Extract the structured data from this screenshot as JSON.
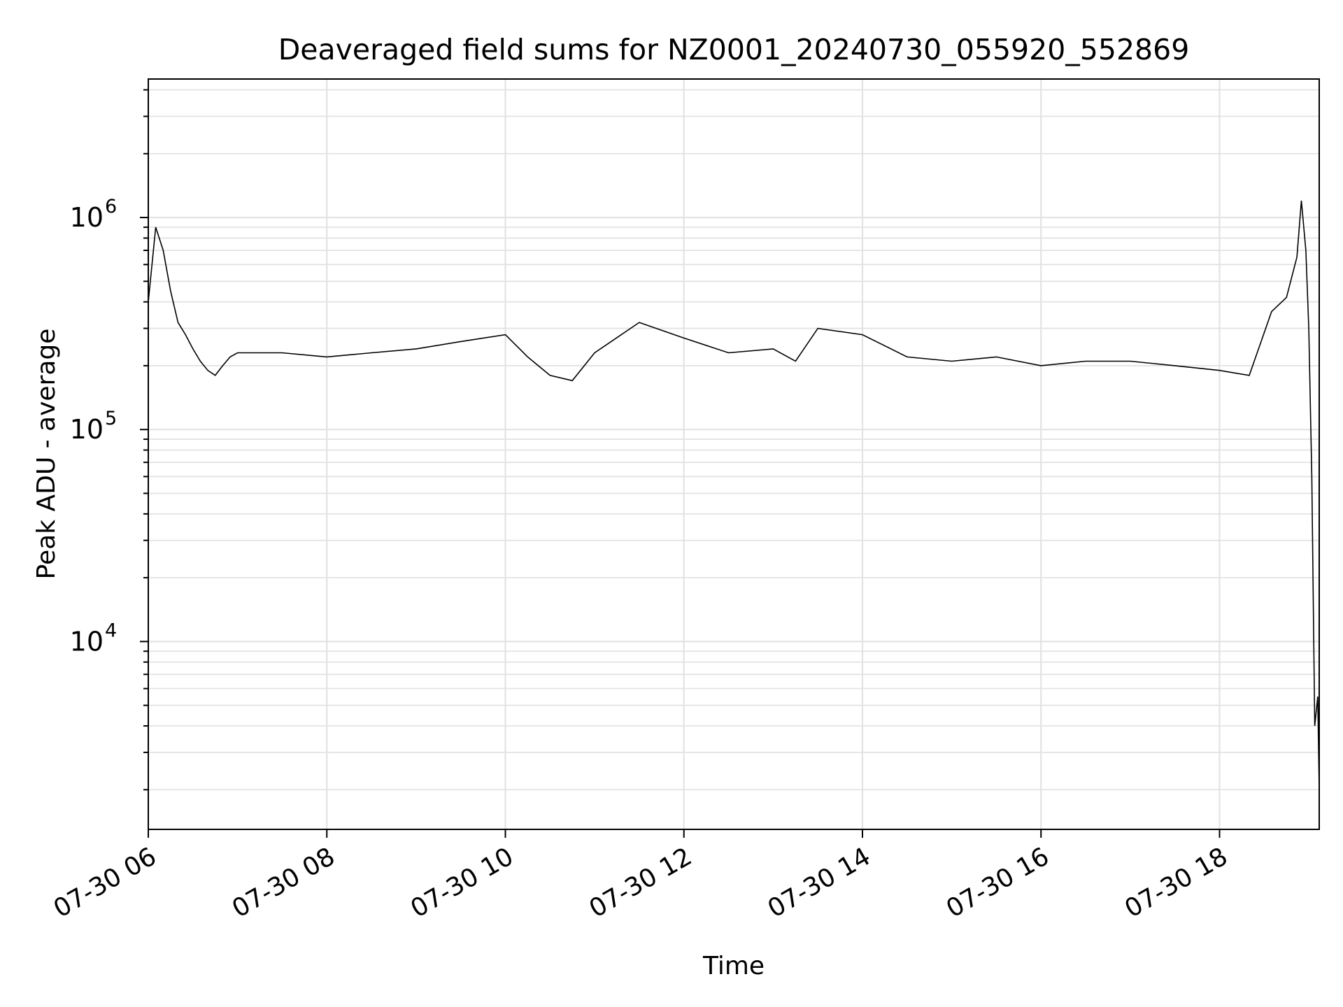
{
  "chart_data": {
    "type": "line",
    "title": "Deaveraged field sums for NZ0001_20240730_055920_552869",
    "xlabel": "Time",
    "ylabel": "Peak ADU - average",
    "xlim": [
      "2024-07-30 06:00",
      "2024-07-30 19:07"
    ],
    "ylim": [
      1300,
      4500000
    ],
    "yscale": "log",
    "grid": true,
    "line_color": "#000000",
    "x_ticks": [
      {
        "t": "2024-07-30 06:00",
        "label": "07-30 06"
      },
      {
        "t": "2024-07-30 08:00",
        "label": "07-30 08"
      },
      {
        "t": "2024-07-30 10:00",
        "label": "07-30 10"
      },
      {
        "t": "2024-07-30 12:00",
        "label": "07-30 12"
      },
      {
        "t": "2024-07-30 14:00",
        "label": "07-30 14"
      },
      {
        "t": "2024-07-30 16:00",
        "label": "07-30 16"
      },
      {
        "t": "2024-07-30 18:00",
        "label": "07-30 18"
      }
    ],
    "y_ticks": [
      {
        "value": 10000,
        "base": "10",
        "exp": "4"
      },
      {
        "value": 100000,
        "base": "10",
        "exp": "5"
      },
      {
        "value": 1000000,
        "base": "10",
        "exp": "6"
      }
    ],
    "series": [
      {
        "name": "",
        "x": [
          "2024-07-30 06:00",
          "2024-07-30 06:05",
          "2024-07-30 06:10",
          "2024-07-30 06:15",
          "2024-07-30 06:20",
          "2024-07-30 06:25",
          "2024-07-30 06:30",
          "2024-07-30 06:35",
          "2024-07-30 06:40",
          "2024-07-30 06:45",
          "2024-07-30 06:50",
          "2024-07-30 06:55",
          "2024-07-30 07:00",
          "2024-07-30 07:30",
          "2024-07-30 08:00",
          "2024-07-30 08:30",
          "2024-07-30 09:00",
          "2024-07-30 09:30",
          "2024-07-30 10:00",
          "2024-07-30 10:15",
          "2024-07-30 10:30",
          "2024-07-30 10:45",
          "2024-07-30 11:00",
          "2024-07-30 11:30",
          "2024-07-30 12:00",
          "2024-07-30 12:30",
          "2024-07-30 13:00",
          "2024-07-30 13:15",
          "2024-07-30 13:30",
          "2024-07-30 14:00",
          "2024-07-30 14:30",
          "2024-07-30 15:00",
          "2024-07-30 15:30",
          "2024-07-30 16:00",
          "2024-07-30 16:30",
          "2024-07-30 17:00",
          "2024-07-30 17:30",
          "2024-07-30 18:00",
          "2024-07-30 18:20",
          "2024-07-30 18:35",
          "2024-07-30 18:45",
          "2024-07-30 18:52",
          "2024-07-30 18:55",
          "2024-07-30 18:58",
          "2024-07-30 19:00",
          "2024-07-30 19:02",
          "2024-07-30 19:04",
          "2024-07-30 19:06",
          "2024-07-30 19:07"
        ],
        "y": [
          400000,
          900000,
          700000,
          450000,
          320000,
          280000,
          240000,
          210000,
          190000,
          180000,
          200000,
          220000,
          230000,
          230000,
          220000,
          230000,
          240000,
          260000,
          280000,
          220000,
          180000,
          170000,
          230000,
          320000,
          270000,
          230000,
          240000,
          210000,
          300000,
          280000,
          220000,
          210000,
          220000,
          200000,
          210000,
          210000,
          200000,
          190000,
          180000,
          360000,
          420000,
          650000,
          1200000,
          700000,
          300000,
          60000,
          4000,
          5500,
          2000
        ]
      }
    ]
  }
}
